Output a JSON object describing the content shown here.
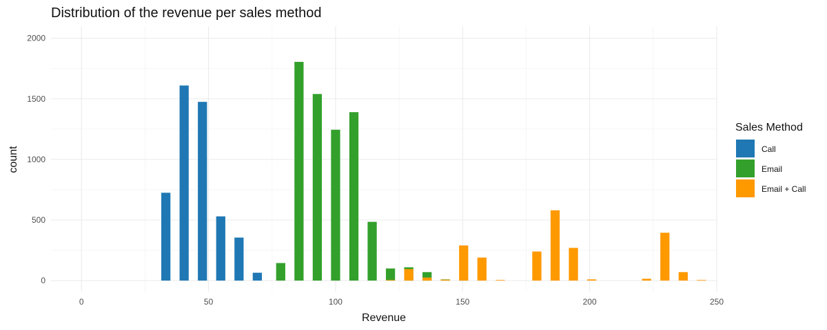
{
  "chart_data": {
    "type": "bar",
    "title": "Distribution of the revenue per sales method",
    "xlabel": "Revenue",
    "ylabel": "count",
    "xlim": [
      -12,
      250
    ],
    "ylim": [
      -90,
      2100
    ],
    "xticks": [
      0,
      50,
      100,
      150,
      200,
      250
    ],
    "yticks": [
      0,
      500,
      1000,
      1500,
      2000
    ],
    "bin_width": 7.2,
    "grid": true,
    "legend": {
      "title": "Sales Method",
      "placement": "right"
    },
    "series": [
      {
        "name": "Call",
        "color": "#1f78b4",
        "points": [
          {
            "x": 33.2,
            "y": 725
          },
          {
            "x": 40.4,
            "y": 1610
          },
          {
            "x": 47.6,
            "y": 1475
          },
          {
            "x": 54.8,
            "y": 530
          },
          {
            "x": 62.0,
            "y": 355
          },
          {
            "x": 69.2,
            "y": 65
          }
        ]
      },
      {
        "name": "Email",
        "color": "#33a02c",
        "points": [
          {
            "x": 78.4,
            "y": 145
          },
          {
            "x": 85.6,
            "y": 1805
          },
          {
            "x": 92.8,
            "y": 1540
          },
          {
            "x": 100.0,
            "y": 1245
          },
          {
            "x": 107.2,
            "y": 1390
          },
          {
            "x": 114.4,
            "y": 485
          },
          {
            "x": 121.6,
            "y": 100
          },
          {
            "x": 128.8,
            "y": 110
          },
          {
            "x": 136.0,
            "y": 70
          },
          {
            "x": 143.2,
            "y": 10
          },
          {
            "x": 150.4,
            "y": 5
          }
        ]
      },
      {
        "name": "Email + Call",
        "color": "#ff9900",
        "points": [
          {
            "x": 121.6,
            "y": 5
          },
          {
            "x": 128.8,
            "y": 95
          },
          {
            "x": 136.0,
            "y": 25
          },
          {
            "x": 143.2,
            "y": 8
          },
          {
            "x": 150.4,
            "y": 290
          },
          {
            "x": 157.6,
            "y": 190
          },
          {
            "x": 164.8,
            "y": 5
          },
          {
            "x": 179.2,
            "y": 240
          },
          {
            "x": 186.4,
            "y": 580
          },
          {
            "x": 193.6,
            "y": 270
          },
          {
            "x": 200.8,
            "y": 10
          },
          {
            "x": 222.4,
            "y": 15
          },
          {
            "x": 229.6,
            "y": 395
          },
          {
            "x": 236.8,
            "y": 70
          },
          {
            "x": 244.0,
            "y": 5
          }
        ]
      }
    ]
  }
}
